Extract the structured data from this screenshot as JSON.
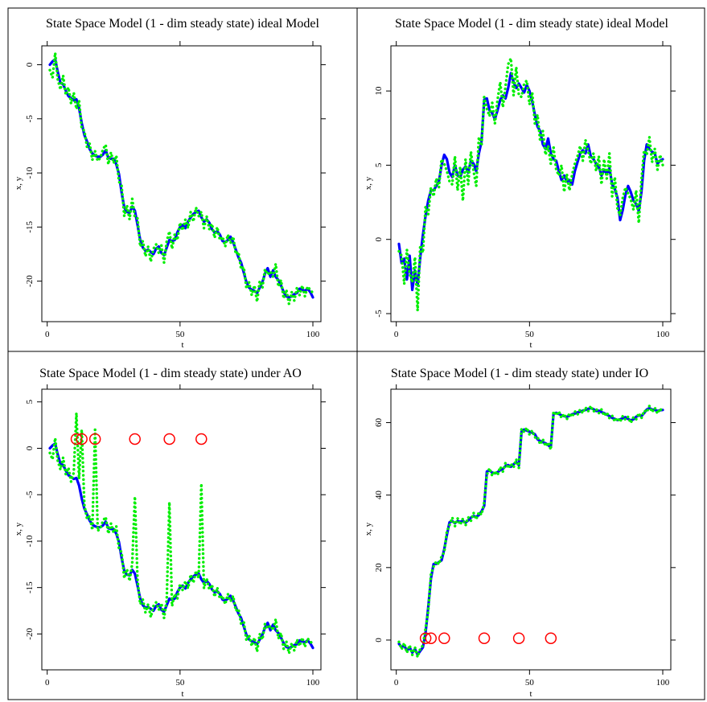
{
  "colors": {
    "state": "#0000ff",
    "observation": "#00ee00",
    "outlier": "#ff0000",
    "frame": "#000000"
  },
  "chart_data": [
    {
      "type": "line",
      "title": "State Space Model (1 - dim steady state) ideal Model",
      "xlabel": "t",
      "ylabel": "x, y",
      "xlim": [
        1,
        100
      ],
      "ylim": [
        -23,
        1
      ],
      "x_ticks": [
        0,
        50,
        100
      ],
      "y_ticks": [
        0,
        -5,
        -10,
        -15,
        -20
      ],
      "y_tick_labels": [
        "0",
        "-5",
        "-10",
        "-15",
        "-20"
      ],
      "series": [
        {
          "style": "solid",
          "color": "#0000ff",
          "values": [
            0,
            0.3,
            0.5,
            -0.7,
            -1.7,
            -1.8,
            -2.4,
            -2.9,
            -3.1,
            -3.3,
            -3.2,
            -4.0,
            -5.4,
            -6.5,
            -7.1,
            -7.8,
            -8.2,
            -8.4,
            -8.5,
            -8.5,
            -8.3,
            -7.9,
            -8.6,
            -8.7,
            -8.7,
            -9.2,
            -10.1,
            -11.8,
            -13.2,
            -13.6,
            -13.7,
            -13.1,
            -13.5,
            -14.8,
            -16.2,
            -16.9,
            -17.2,
            -17.1,
            -17.3,
            -17.5,
            -17.0,
            -16.8,
            -17.4,
            -17.6,
            -16.9,
            -16.2,
            -16.3,
            -16.2,
            -15.5,
            -15.0,
            -14.8,
            -15.1,
            -14.5,
            -14.1,
            -13.8,
            -13.6,
            -13.5,
            -14.1,
            -14.5,
            -14.3,
            -14.6,
            -15.2,
            -15.5,
            -15.4,
            -15.7,
            -16.3,
            -16.4,
            -16.2,
            -15.9,
            -16.4,
            -17.1,
            -17.8,
            -18.3,
            -19.2,
            -20.1,
            -20.6,
            -20.8,
            -20.9,
            -21.1,
            -20.6,
            -20.1,
            -19.3,
            -18.8,
            -19.6,
            -19.0,
            -19.6,
            -19.9,
            -20.4,
            -21.0,
            -21.4,
            -21.5,
            -21.4,
            -21.2,
            -21.1,
            -20.7,
            -20.8,
            -20.9,
            -20.7,
            -21.0,
            -21.5
          ]
        },
        {
          "style": "dotted",
          "color": "#00ee00",
          "values": [
            -0.5,
            -1.2,
            1.1,
            -1.4,
            -2.3,
            -1.0,
            -2.8,
            -2.1,
            -3.6,
            -2.6,
            -4.1,
            -3.3,
            -5.9,
            -6.1,
            -7.6,
            -7.3,
            -8.8,
            -8.0,
            -8.9,
            -8.6,
            -7.8,
            -7.4,
            -9.2,
            -8.1,
            -9.1,
            -8.4,
            -10.8,
            -11.2,
            -14.0,
            -13.0,
            -14.3,
            -12.4,
            -14.1,
            -14.2,
            -16.8,
            -16.3,
            -17.7,
            -16.8,
            -18.2,
            -17.0,
            -16.6,
            -17.4,
            -16.7,
            -18.3,
            -16.3,
            -15.4,
            -17.0,
            -15.7,
            -16.2,
            -14.6,
            -15.3,
            -14.3,
            -15.1,
            -13.6,
            -14.5,
            -13.2,
            -14.0,
            -13.6,
            -15.1,
            -14.0,
            -15.2,
            -14.7,
            -16.0,
            -15.0,
            -16.2,
            -15.9,
            -16.8,
            -15.7,
            -16.5,
            -15.9,
            -17.5,
            -17.3,
            -18.9,
            -18.7,
            -20.7,
            -20.1,
            -21.3,
            -20.4,
            -21.9,
            -20.0,
            -20.6,
            -18.9,
            -19.4,
            -19.1,
            -19.6,
            -18.4,
            -20.5,
            -19.9,
            -21.6,
            -20.8,
            -22.1,
            -21.0,
            -21.8,
            -20.6,
            -21.3,
            -20.4,
            -21.4,
            -20.5,
            -20.8,
            -21.1
          ]
        }
      ]
    },
    {
      "type": "line",
      "title": "State Space Model (1 - dim steady state) ideal Model",
      "xlabel": "t",
      "ylabel": "x, y",
      "xlim": [
        1,
        100
      ],
      "ylim": [
        -5,
        12.5
      ],
      "x_ticks": [
        0,
        50,
        100
      ],
      "y_ticks": [
        -5,
        0,
        5,
        10
      ],
      "y_tick_labels": [
        "-5",
        "0",
        "5",
        "10"
      ],
      "series": [
        {
          "style": "solid",
          "color": "#0000ff",
          "values": [
            -0.3,
            -1.6,
            -1.3,
            -2.7,
            -1.1,
            -3.4,
            -2.1,
            -3.1,
            -1.2,
            0.3,
            1.6,
            2.6,
            3.3,
            3.3,
            3.6,
            3.9,
            5.0,
            5.7,
            5.4,
            4.5,
            4.2,
            5.0,
            4.3,
            4.2,
            4.7,
            4.9,
            4.5,
            5.3,
            5.1,
            4.6,
            5.8,
            6.6,
            9.4,
            9.5,
            8.7,
            8.5,
            8.1,
            8.7,
            9.4,
            9.7,
            9.5,
            10.2,
            11.2,
            10.6,
            10.2,
            10.5,
            10.2,
            9.9,
            10.4,
            10.0,
            9.3,
            8.4,
            7.6,
            7.3,
            6.4,
            6.1,
            6.8,
            5.8,
            5.4,
            5.3,
            4.6,
            4.0,
            4.3,
            3.9,
            4.0,
            3.7,
            4.6,
            5.2,
            5.8,
            6.0,
            5.8,
            6.4,
            5.6,
            5.4,
            5.1,
            4.9,
            4.3,
            4.7,
            4.4,
            4.8,
            3.7,
            3.4,
            2.8,
            1.3,
            2.0,
            3.0,
            3.6,
            3.2,
            2.6,
            2.4,
            1.9,
            3.2,
            5.3,
            6.4,
            6.1,
            5.9,
            5.8,
            5.1,
            5.3,
            5.4
          ]
        },
        {
          "style": "dotted",
          "color": "#00ee00",
          "values": [
            -0.8,
            -1.1,
            -3.0,
            -0.7,
            -2.3,
            -2.9,
            -1.2,
            -4.8,
            -0.4,
            -0.9,
            2.2,
            1.7,
            3.5,
            2.9,
            4.1,
            3.5,
            5.4,
            5.1,
            4.6,
            3.9,
            3.7,
            5.6,
            3.3,
            4.9,
            2.6,
            5.4,
            3.7,
            5.9,
            4.6,
            3.6,
            6.9,
            6.3,
            9.6,
            8.8,
            8.3,
            9.2,
            7.8,
            9.4,
            10.6,
            8.9,
            10.3,
            11.8,
            12.2,
            9.7,
            11.6,
            9.7,
            9.6,
            10.5,
            10.7,
            9.1,
            9.9,
            7.8,
            8.4,
            6.6,
            7.3,
            5.7,
            6.3,
            5.1,
            6.2,
            4.7,
            4.3,
            5.0,
            3.2,
            4.4,
            3.3,
            4.4,
            5.1,
            5.6,
            6.3,
            5.3,
            6.7,
            6.0,
            5.1,
            5.8,
            4.6,
            5.6,
            3.7,
            5.4,
            4.1,
            5.8,
            2.9,
            4.2,
            2.1,
            1.6,
            2.8,
            3.5,
            3.1,
            2.7,
            2.0,
            3.3,
            1.1,
            4.0,
            6.0,
            5.7,
            6.9,
            5.2,
            6.1,
            4.7,
            5.7,
            5.0
          ]
        }
      ]
    },
    {
      "type": "line",
      "title": "State Space Model (1 - dim steady state) under AO",
      "xlabel": "t",
      "ylabel": "x, y",
      "xlim": [
        1,
        100
      ],
      "ylim": [
        -23,
        5.5
      ],
      "x_ticks": [
        0,
        50,
        100
      ],
      "y_ticks": [
        5,
        0,
        -5,
        -10,
        -15,
        -20
      ],
      "y_tick_labels": [
        "5",
        "0",
        "-5",
        "-10",
        "-15",
        "-20"
      ],
      "outliers_t": [
        11,
        13,
        18,
        33,
        46,
        58
      ],
      "outliers_y": [
        1,
        1,
        1,
        1,
        1,
        1
      ],
      "series": [
        {
          "style": "solid",
          "color": "#0000ff",
          "values": [
            0,
            0.3,
            0.5,
            -0.7,
            -1.7,
            -1.8,
            -2.4,
            -2.9,
            -3.1,
            -3.3,
            -3.2,
            -4.0,
            -5.4,
            -6.5,
            -7.1,
            -7.8,
            -8.2,
            -8.4,
            -8.5,
            -8.5,
            -8.3,
            -7.9,
            -8.6,
            -8.7,
            -8.7,
            -9.2,
            -10.1,
            -11.8,
            -13.2,
            -13.6,
            -13.7,
            -13.1,
            -13.5,
            -14.8,
            -16.2,
            -16.9,
            -17.2,
            -17.1,
            -17.3,
            -17.5,
            -17.0,
            -16.8,
            -17.4,
            -17.6,
            -16.9,
            -16.2,
            -16.3,
            -16.2,
            -15.5,
            -15.0,
            -14.8,
            -15.1,
            -14.5,
            -14.1,
            -13.8,
            -13.6,
            -13.5,
            -14.1,
            -14.5,
            -14.3,
            -14.6,
            -15.2,
            -15.5,
            -15.4,
            -15.7,
            -16.3,
            -16.4,
            -16.2,
            -15.9,
            -16.4,
            -17.1,
            -17.8,
            -18.3,
            -19.2,
            -20.1,
            -20.6,
            -20.8,
            -20.9,
            -21.1,
            -20.6,
            -20.1,
            -19.3,
            -18.8,
            -19.6,
            -19.0,
            -19.6,
            -19.9,
            -20.4,
            -21.0,
            -21.4,
            -21.5,
            -21.4,
            -21.2,
            -21.1,
            -20.7,
            -20.8,
            -20.9,
            -20.7,
            -21.0,
            -21.5
          ]
        },
        {
          "style": "dotted",
          "color": "#00ee00",
          "values": [
            -0.5,
            -1.2,
            1.1,
            -1.4,
            -2.3,
            -1.0,
            -2.8,
            -2.1,
            -3.6,
            -2.6,
            3.8,
            -3.3,
            2.0,
            -6.1,
            -7.6,
            -7.3,
            -8.8,
            2.0,
            -8.9,
            -8.6,
            -7.8,
            -7.4,
            -9.2,
            -8.1,
            -9.1,
            -8.4,
            -10.8,
            -11.2,
            -14.0,
            -13.0,
            -14.3,
            -12.4,
            -5.2,
            -14.2,
            -16.8,
            -16.3,
            -17.7,
            -16.8,
            -18.2,
            -17.0,
            -16.6,
            -17.4,
            -16.7,
            -18.3,
            -16.3,
            -5.8,
            -17.0,
            -15.7,
            -16.2,
            -14.6,
            -15.3,
            -14.3,
            -15.1,
            -13.6,
            -14.5,
            -13.2,
            -14.0,
            -3.8,
            -15.1,
            -14.0,
            -15.2,
            -14.7,
            -16.0,
            -15.0,
            -16.2,
            -15.9,
            -16.8,
            -15.7,
            -16.5,
            -15.9,
            -17.5,
            -17.3,
            -18.9,
            -18.7,
            -20.7,
            -20.1,
            -21.3,
            -20.4,
            -21.9,
            -20.0,
            -20.6,
            -18.9,
            -19.4,
            -19.1,
            -19.6,
            -18.4,
            -20.5,
            -19.9,
            -21.6,
            -20.8,
            -22.1,
            -21.0,
            -21.8,
            -20.6,
            -21.3,
            -20.4,
            -21.4,
            -20.5,
            -20.8,
            -21.1
          ]
        }
      ]
    },
    {
      "type": "line",
      "title": "State Space Model (1 - dim steady state) under IO",
      "xlabel": "t",
      "ylabel": "x, y",
      "xlim": [
        1,
        100
      ],
      "ylim": [
        -6,
        67
      ],
      "x_ticks": [
        0,
        50,
        100
      ],
      "y_ticks": [
        0,
        20,
        40,
        60
      ],
      "y_tick_labels": [
        "0",
        "20",
        "40",
        "60"
      ],
      "outliers_t": [
        11,
        13,
        18,
        33,
        46,
        58
      ],
      "outliers_y": [
        0.5,
        0.5,
        0.5,
        0.5,
        0.5,
        0.5
      ],
      "series": [
        {
          "style": "solid",
          "color": "#0000ff",
          "values": [
            -1,
            -2,
            -1.5,
            -3,
            -2,
            -3.5,
            -2.5,
            -4,
            -3,
            -2,
            2,
            9,
            17,
            21,
            21,
            21.5,
            22,
            25,
            29,
            32.5,
            32.8,
            32.3,
            32.8,
            32.6,
            32.9,
            32.4,
            33.0,
            33.8,
            34.2,
            34.0,
            34.5,
            35.5,
            37,
            46.5,
            46.8,
            46.2,
            46.0,
            46.3,
            46.9,
            47.2,
            48.0,
            48.3,
            47.8,
            48.5,
            49.1,
            48.2,
            57.5,
            58.1,
            57.8,
            57.5,
            57.2,
            56.8,
            55.4,
            54.9,
            54.6,
            54.3,
            53.8,
            53.2,
            62.5,
            62.7,
            62.4,
            62.0,
            61.8,
            61.6,
            61.9,
            62.3,
            62.5,
            62.8,
            63.0,
            63.3,
            63.5,
            63.8,
            64.0,
            63.7,
            63.2,
            63.3,
            62.9,
            62.6,
            62.2,
            61.8,
            61.3,
            61.0,
            60.7,
            60.9,
            61.2,
            61.5,
            61.0,
            60.6,
            60.9,
            61.6,
            62.0,
            61.8,
            62.6,
            63.6,
            64.0,
            63.6,
            63.5,
            63.2,
            63.4,
            63.5
          ]
        },
        {
          "style": "dotted",
          "color": "#00ee00",
          "values": [
            -0.5,
            -2.5,
            -0.8,
            -3.5,
            -1.4,
            -4.1,
            -2.0,
            -4.7,
            -2.4,
            -1.5,
            3.2,
            8.0,
            18.1,
            20.3,
            21.7,
            20.9,
            23.1,
            24.2,
            30.0,
            31.7,
            33.8,
            31.4,
            33.6,
            31.8,
            33.5,
            31.6,
            33.9,
            32.9,
            35.1,
            33.3,
            35.3,
            34.6,
            38.0,
            45.6,
            47.4,
            45.3,
            46.6,
            45.5,
            47.8,
            46.5,
            48.9,
            47.4,
            48.6,
            47.6,
            49.9,
            47.5,
            58.3,
            57.4,
            58.6,
            56.7,
            57.8,
            55.9,
            56.1,
            54.0,
            55.4,
            53.5,
            54.5,
            52.5,
            63.1,
            62.0,
            63.1,
            61.3,
            62.4,
            60.9,
            62.6,
            61.6,
            63.1,
            62.2,
            63.6,
            62.6,
            64.2,
            63.1,
            64.6,
            63.0,
            63.8,
            62.6,
            63.6,
            61.9,
            62.8,
            61.2,
            61.9,
            60.3,
            61.3,
            60.2,
            61.8,
            60.8,
            61.6,
            59.9,
            61.5,
            60.9,
            62.6,
            61.2,
            63.3,
            62.9,
            64.6,
            62.9,
            64.1,
            62.5,
            63.9,
            62.8
          ]
        }
      ]
    }
  ]
}
